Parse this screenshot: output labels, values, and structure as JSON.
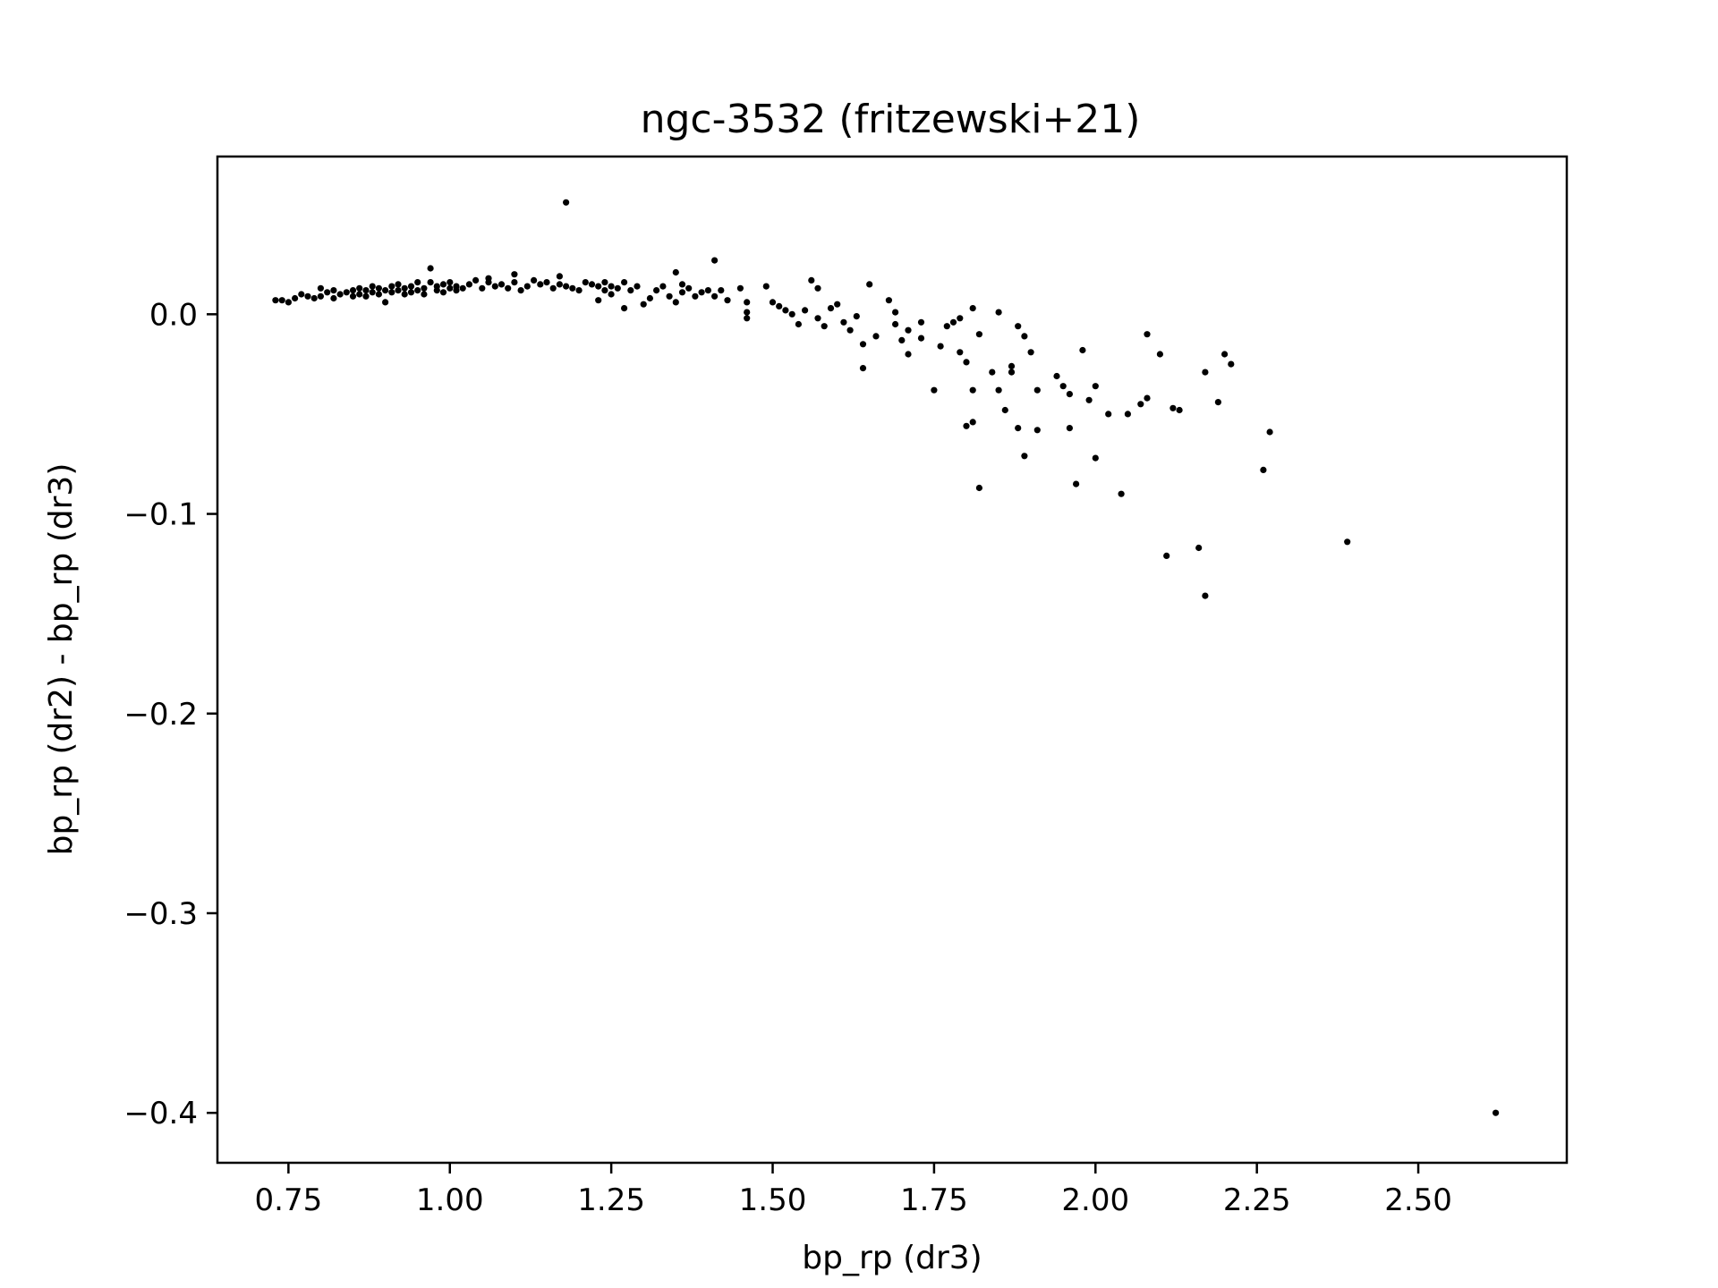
{
  "chart_data": {
    "type": "scatter",
    "title": "ngc-3532 (fritzewski+21)",
    "xlabel": "bp_rp (dr3)",
    "ylabel": "bp_rp (dr2) - bp_rp (dr3)",
    "xlim": [
      0.64,
      2.73
    ],
    "ylim": [
      -0.425,
      0.079
    ],
    "grid": false,
    "marker_color": "#000000",
    "x_ticks": [
      {
        "value": 0.75,
        "label": "0.75"
      },
      {
        "value": 1.0,
        "label": "1.00"
      },
      {
        "value": 1.25,
        "label": "1.25"
      },
      {
        "value": 1.5,
        "label": "1.50"
      },
      {
        "value": 1.75,
        "label": "1.75"
      },
      {
        "value": 2.0,
        "label": "2.00"
      },
      {
        "value": 2.25,
        "label": "2.25"
      },
      {
        "value": 2.5,
        "label": "2.50"
      }
    ],
    "y_ticks": [
      {
        "value": 0.0,
        "label": "0.0"
      },
      {
        "value": -0.1,
        "label": "−0.1"
      },
      {
        "value": -0.2,
        "label": "−0.2"
      },
      {
        "value": -0.3,
        "label": "−0.3"
      },
      {
        "value": -0.4,
        "label": "−0.4"
      }
    ],
    "points": [
      [
        0.73,
        0.007
      ],
      [
        0.74,
        0.007
      ],
      [
        0.75,
        0.006
      ],
      [
        0.76,
        0.008
      ],
      [
        0.77,
        0.01
      ],
      [
        0.78,
        0.009
      ],
      [
        0.79,
        0.008
      ],
      [
        0.8,
        0.009
      ],
      [
        0.8,
        0.013
      ],
      [
        0.81,
        0.011
      ],
      [
        0.82,
        0.008
      ],
      [
        0.82,
        0.012
      ],
      [
        0.83,
        0.01
      ],
      [
        0.84,
        0.011
      ],
      [
        0.85,
        0.012
      ],
      [
        0.85,
        0.009
      ],
      [
        0.86,
        0.01
      ],
      [
        0.86,
        0.013
      ],
      [
        0.87,
        0.009
      ],
      [
        0.87,
        0.012
      ],
      [
        0.88,
        0.011
      ],
      [
        0.88,
        0.014
      ],
      [
        0.89,
        0.01
      ],
      [
        0.89,
        0.013
      ],
      [
        0.9,
        0.012
      ],
      [
        0.9,
        0.006
      ],
      [
        0.91,
        0.011
      ],
      [
        0.91,
        0.014
      ],
      [
        0.92,
        0.012
      ],
      [
        0.92,
        0.015
      ],
      [
        0.93,
        0.01
      ],
      [
        0.93,
        0.013
      ],
      [
        0.94,
        0.011
      ],
      [
        0.94,
        0.014
      ],
      [
        0.95,
        0.012
      ],
      [
        0.95,
        0.016
      ],
      [
        0.96,
        0.01
      ],
      [
        0.96,
        0.013
      ],
      [
        0.97,
        0.023
      ],
      [
        0.97,
        0.016
      ],
      [
        0.98,
        0.012
      ],
      [
        0.98,
        0.014
      ],
      [
        0.99,
        0.011
      ],
      [
        0.99,
        0.015
      ],
      [
        1.0,
        0.013
      ],
      [
        1.0,
        0.016
      ],
      [
        1.01,
        0.012
      ],
      [
        1.01,
        0.014
      ],
      [
        1.02,
        0.013
      ],
      [
        1.03,
        0.015
      ],
      [
        1.04,
        0.017
      ],
      [
        1.05,
        0.013
      ],
      [
        1.06,
        0.016
      ],
      [
        1.06,
        0.018
      ],
      [
        1.07,
        0.014
      ],
      [
        1.08,
        0.015
      ],
      [
        1.09,
        0.013
      ],
      [
        1.1,
        0.016
      ],
      [
        1.1,
        0.02
      ],
      [
        1.11,
        0.012
      ],
      [
        1.12,
        0.014
      ],
      [
        1.13,
        0.017
      ],
      [
        1.14,
        0.015
      ],
      [
        1.15,
        0.016
      ],
      [
        1.16,
        0.013
      ],
      [
        1.17,
        0.015
      ],
      [
        1.17,
        0.019
      ],
      [
        1.18,
        0.014
      ],
      [
        1.18,
        0.056
      ],
      [
        1.19,
        0.013
      ],
      [
        1.2,
        0.012
      ],
      [
        1.21,
        0.016
      ],
      [
        1.22,
        0.015
      ],
      [
        1.23,
        0.014
      ],
      [
        1.23,
        0.007
      ],
      [
        1.24,
        0.012
      ],
      [
        1.24,
        0.016
      ],
      [
        1.25,
        0.014
      ],
      [
        1.25,
        0.01
      ],
      [
        1.26,
        0.013
      ],
      [
        1.27,
        0.016
      ],
      [
        1.27,
        0.003
      ],
      [
        1.28,
        0.012
      ],
      [
        1.29,
        0.014
      ],
      [
        1.3,
        0.005
      ],
      [
        1.31,
        0.008
      ],
      [
        1.32,
        0.012
      ],
      [
        1.33,
        0.014
      ],
      [
        1.34,
        0.009
      ],
      [
        1.35,
        0.006
      ],
      [
        1.35,
        0.021
      ],
      [
        1.36,
        0.015
      ],
      [
        1.36,
        0.011
      ],
      [
        1.37,
        0.013
      ],
      [
        1.38,
        0.009
      ],
      [
        1.39,
        0.011
      ],
      [
        1.4,
        0.012
      ],
      [
        1.41,
        0.009
      ],
      [
        1.41,
        0.027
      ],
      [
        1.42,
        0.012
      ],
      [
        1.43,
        0.007
      ],
      [
        1.45,
        0.013
      ],
      [
        1.46,
        0.006
      ],
      [
        1.46,
        0.001
      ],
      [
        1.46,
        -0.002
      ],
      [
        1.49,
        0.014
      ],
      [
        1.5,
        0.006
      ],
      [
        1.51,
        0.004
      ],
      [
        1.52,
        0.002
      ],
      [
        1.53,
        0.0
      ],
      [
        1.54,
        -0.005
      ],
      [
        1.55,
        0.002
      ],
      [
        1.56,
        0.017
      ],
      [
        1.57,
        0.013
      ],
      [
        1.57,
        -0.002
      ],
      [
        1.58,
        -0.006
      ],
      [
        1.59,
        0.003
      ],
      [
        1.6,
        0.005
      ],
      [
        1.61,
        -0.004
      ],
      [
        1.62,
        -0.008
      ],
      [
        1.63,
        -0.001
      ],
      [
        1.64,
        -0.015
      ],
      [
        1.64,
        -0.027
      ],
      [
        1.65,
        0.015
      ],
      [
        1.66,
        -0.011
      ],
      [
        1.68,
        0.007
      ],
      [
        1.69,
        0.001
      ],
      [
        1.69,
        -0.005
      ],
      [
        1.7,
        -0.013
      ],
      [
        1.71,
        -0.02
      ],
      [
        1.71,
        -0.008
      ],
      [
        1.73,
        -0.012
      ],
      [
        1.73,
        -0.004
      ],
      [
        1.75,
        -0.038
      ],
      [
        1.76,
        -0.016
      ],
      [
        1.77,
        -0.006
      ],
      [
        1.78,
        -0.004
      ],
      [
        1.79,
        -0.019
      ],
      [
        1.79,
        -0.002
      ],
      [
        1.8,
        -0.024
      ],
      [
        1.8,
        -0.056
      ],
      [
        1.81,
        -0.054
      ],
      [
        1.81,
        -0.038
      ],
      [
        1.81,
        0.003
      ],
      [
        1.82,
        -0.01
      ],
      [
        1.82,
        -0.087
      ],
      [
        1.84,
        -0.029
      ],
      [
        1.85,
        -0.038
      ],
      [
        1.85,
        0.001
      ],
      [
        1.86,
        -0.048
      ],
      [
        1.87,
        -0.026
      ],
      [
        1.87,
        -0.029
      ],
      [
        1.88,
        -0.057
      ],
      [
        1.88,
        -0.006
      ],
      [
        1.89,
        -0.011
      ],
      [
        1.89,
        -0.071
      ],
      [
        1.9,
        -0.019
      ],
      [
        1.91,
        -0.038
      ],
      [
        1.91,
        -0.058
      ],
      [
        1.94,
        -0.031
      ],
      [
        1.95,
        -0.036
      ],
      [
        1.96,
        -0.04
      ],
      [
        1.96,
        -0.057
      ],
      [
        1.97,
        -0.085
      ],
      [
        1.98,
        -0.018
      ],
      [
        1.99,
        -0.043
      ],
      [
        2.0,
        -0.036
      ],
      [
        2.0,
        -0.072
      ],
      [
        2.02,
        -0.05
      ],
      [
        2.04,
        -0.09
      ],
      [
        2.05,
        -0.05
      ],
      [
        2.07,
        -0.045
      ],
      [
        2.08,
        -0.01
      ],
      [
        2.08,
        -0.042
      ],
      [
        2.1,
        -0.02
      ],
      [
        2.11,
        -0.121
      ],
      [
        2.12,
        -0.047
      ],
      [
        2.13,
        -0.048
      ],
      [
        2.16,
        -0.117
      ],
      [
        2.17,
        -0.029
      ],
      [
        2.17,
        -0.141
      ],
      [
        2.19,
        -0.044
      ],
      [
        2.2,
        -0.02
      ],
      [
        2.21,
        -0.025
      ],
      [
        2.26,
        -0.078
      ],
      [
        2.27,
        -0.059
      ],
      [
        2.39,
        -0.114
      ],
      [
        2.62,
        -0.4
      ]
    ]
  }
}
